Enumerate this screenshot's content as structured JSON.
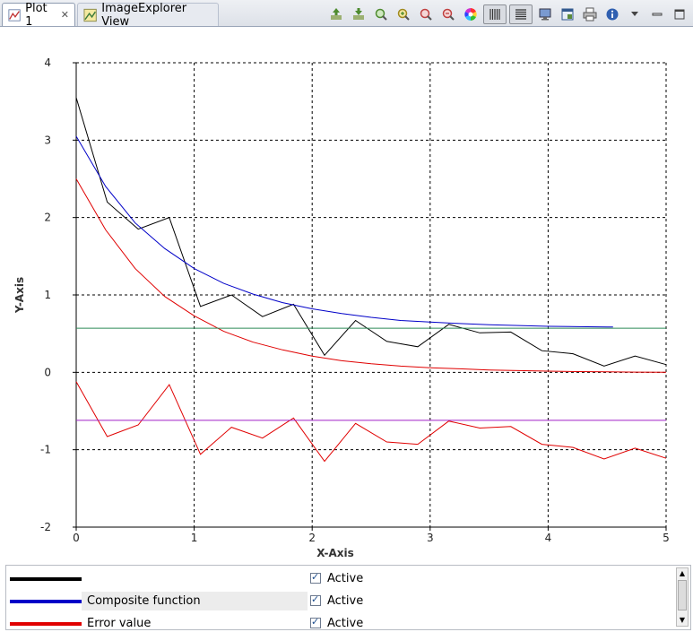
{
  "tabs": [
    {
      "label": "Plot 1",
      "icon": "plot-icon",
      "active": true
    },
    {
      "label": "ImageExplorer View",
      "icon": "image-explorer-icon",
      "active": false
    }
  ],
  "toolbar": [
    "export-icon",
    "import-icon",
    "zoom-icon",
    "zoom-in-icon",
    "zoom-undo-icon",
    "zoom-reset-icon",
    "color-wheel-icon",
    "bars-icon",
    "lines-icon",
    "monitor-icon",
    "window-icon",
    "print-icon",
    "info-icon",
    "menu-icon",
    "minimize-icon",
    "maximize-icon"
  ],
  "chart_data": {
    "type": "line",
    "title": "",
    "xlabel": "X-Axis",
    "ylabel": "Y-Axis",
    "xlim": [
      0,
      5
    ],
    "ylim": [
      -2,
      4
    ],
    "xticks": [
      "0",
      "1",
      "2",
      "3",
      "4",
      "5"
    ],
    "yticks": [
      "-2",
      "-1",
      "0",
      "1",
      "2",
      "3",
      "4"
    ],
    "grid": true,
    "series": [
      {
        "name": "",
        "color": "#000000",
        "x": [
          0,
          0.263,
          0.526,
          0.789,
          1.053,
          1.316,
          1.579,
          1.842,
          2.105,
          2.368,
          2.632,
          2.895,
          3.158,
          3.421,
          3.684,
          3.947,
          4.211,
          4.474,
          4.737,
          5
        ],
        "y": [
          3.55,
          2.2,
          1.85,
          2.0,
          0.85,
          1.0,
          0.72,
          0.88,
          0.22,
          0.67,
          0.4,
          0.33,
          0.62,
          0.51,
          0.52,
          0.28,
          0.24,
          0.08,
          0.21,
          0.1
        ]
      },
      {
        "name": "Composite function",
        "color": "#0000c8",
        "x": [
          0,
          0.25,
          0.5,
          0.75,
          1,
          1.25,
          1.5,
          1.75,
          2,
          2.25,
          2.5,
          2.75,
          3,
          3.25,
          3.5,
          3.75,
          4,
          4.25,
          4.5,
          4.55
        ],
        "y": [
          3.05,
          2.4,
          1.93,
          1.6,
          1.34,
          1.15,
          1.01,
          0.9,
          0.82,
          0.76,
          0.71,
          0.67,
          0.65,
          0.63,
          0.615,
          0.605,
          0.595,
          0.59,
          0.585,
          0.585
        ]
      },
      {
        "name": "Error value",
        "color": "#e00000",
        "x": [
          0,
          0.25,
          0.5,
          0.75,
          1,
          1.25,
          1.5,
          1.75,
          2,
          2.25,
          2.5,
          2.75,
          3,
          3.25,
          3.5,
          3.75,
          4,
          4.25,
          4.5,
          4.75,
          5
        ],
        "y": [
          2.5,
          1.84,
          1.34,
          0.98,
          0.73,
          0.53,
          0.39,
          0.29,
          0.21,
          0.15,
          0.11,
          0.08,
          0.06,
          0.045,
          0.03,
          0.022,
          0.015,
          0.01,
          0.006,
          0.003,
          0.0
        ]
      },
      {
        "name": "",
        "color": "#e00000",
        "x": [
          0,
          0.263,
          0.526,
          0.789,
          1.053,
          1.316,
          1.579,
          1.842,
          2.105,
          2.368,
          2.632,
          2.895,
          3.158,
          3.421,
          3.684,
          3.947,
          4.211,
          4.474,
          4.737,
          5
        ],
        "y": [
          -0.12,
          -0.83,
          -0.68,
          -0.16,
          -1.06,
          -0.71,
          -0.85,
          -0.59,
          -1.15,
          -0.66,
          -0.9,
          -0.93,
          -0.63,
          -0.72,
          -0.7,
          -0.93,
          -0.97,
          -1.12,
          -0.98,
          -1.11
        ]
      },
      {
        "name": "",
        "color": "#2e8b57",
        "x": [
          0,
          5
        ],
        "y": [
          0.57,
          0.57
        ]
      },
      {
        "name": "",
        "color": "#a020c8",
        "x": [
          0,
          5
        ],
        "y": [
          -0.62,
          -0.62
        ]
      }
    ]
  },
  "legend": {
    "rows": [
      {
        "name": "",
        "color": "#000000",
        "status": "Active"
      },
      {
        "name": "Composite function",
        "color": "#0000c8",
        "status": "Active"
      },
      {
        "name": "Error value",
        "color": "#e00000",
        "status": "Active"
      }
    ]
  }
}
